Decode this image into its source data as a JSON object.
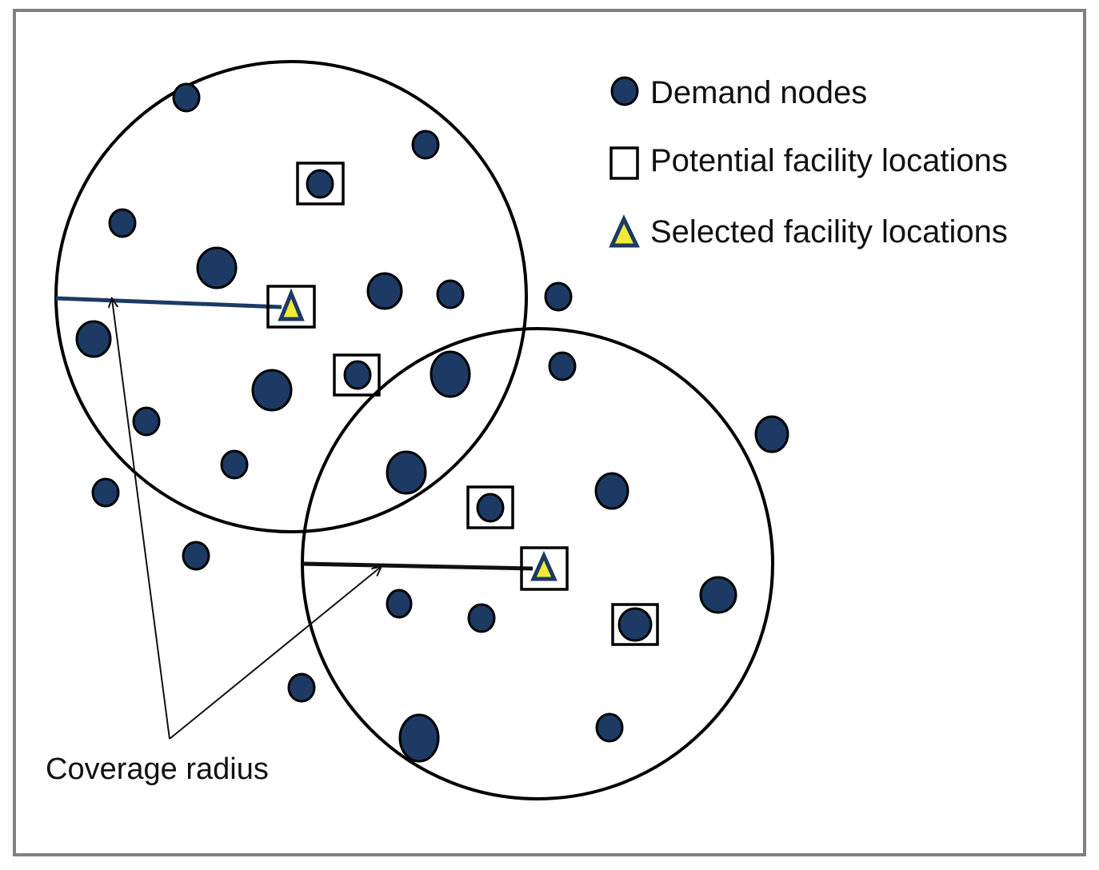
{
  "legend": {
    "demand_nodes": "Demand nodes",
    "potential_facility_locations": "Potential facility locations",
    "selected_facility_locations": "Selected facility locations"
  },
  "annotation": {
    "coverage_radius": "Coverage radius"
  },
  "colors": {
    "frame": "#808080",
    "node_fill": "#1c3a64",
    "node_stroke": "#000000",
    "triangle_fill": "#f2ea3a",
    "triangle_stroke": "#1c3a64",
    "radius_line_top": "#1c3a64",
    "radius_line_bottom": "#111111"
  },
  "icons": {
    "demand_node": "filled-circle-icon",
    "potential_facility": "square-outline-icon",
    "selected_facility": "triangle-in-square-icon"
  }
}
